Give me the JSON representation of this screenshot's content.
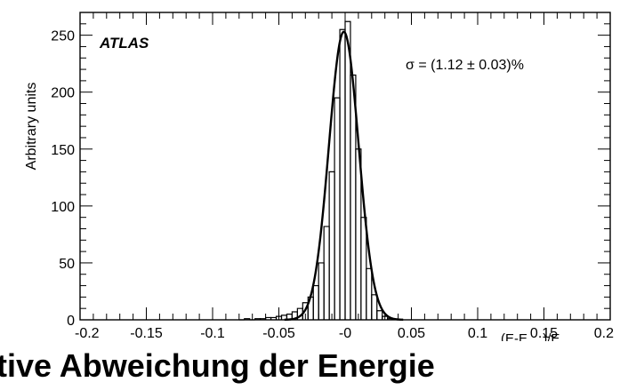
{
  "chart_data": {
    "type": "bar",
    "subtype": "histogram-with-gaussian-fit",
    "title": "",
    "brand_label": "ATLAS",
    "annotation": "σ = (1.12 ± 0.03)%",
    "ylabel": "Arbitrary units",
    "xlabel_parts": {
      "pre": "(E-E",
      "sub1": "true",
      "mid": ")/E",
      "sub2": "true"
    },
    "xlim": [
      -0.2,
      0.2
    ],
    "ylim": [
      0,
      270
    ],
    "xticks": [
      "-0.2",
      "-0.15",
      "-0.1",
      "-0.05",
      "-0",
      "0.05",
      "0.1",
      "0.15",
      "0.2"
    ],
    "yticks": [
      "0",
      "50",
      "100",
      "150",
      "200",
      "250"
    ],
    "grid": false,
    "legend": "none",
    "bin_width": 0.004,
    "bin_edges_start": -0.08,
    "bins": [
      {
        "x": -0.078,
        "y": 0
      },
      {
        "x": -0.074,
        "y": 1
      },
      {
        "x": -0.07,
        "y": 0
      },
      {
        "x": -0.066,
        "y": 1
      },
      {
        "x": -0.062,
        "y": 1
      },
      {
        "x": -0.058,
        "y": 2
      },
      {
        "x": -0.054,
        "y": 2
      },
      {
        "x": -0.05,
        "y": 3
      },
      {
        "x": -0.046,
        "y": 4
      },
      {
        "x": -0.042,
        "y": 5
      },
      {
        "x": -0.038,
        "y": 7
      },
      {
        "x": -0.034,
        "y": 10
      },
      {
        "x": -0.03,
        "y": 15
      },
      {
        "x": -0.026,
        "y": 20
      },
      {
        "x": -0.022,
        "y": 30
      },
      {
        "x": -0.018,
        "y": 50
      },
      {
        "x": -0.014,
        "y": 82
      },
      {
        "x": -0.01,
        "y": 130
      },
      {
        "x": -0.006,
        "y": 195
      },
      {
        "x": -0.002,
        "y": 255
      },
      {
        "x": 0.002,
        "y": 262
      },
      {
        "x": 0.006,
        "y": 215
      },
      {
        "x": 0.01,
        "y": 150
      },
      {
        "x": 0.014,
        "y": 90
      },
      {
        "x": 0.018,
        "y": 45
      },
      {
        "x": 0.022,
        "y": 22
      },
      {
        "x": 0.026,
        "y": 8
      },
      {
        "x": 0.03,
        "y": 3
      },
      {
        "x": 0.034,
        "y": 1
      }
    ],
    "fit": {
      "amplitude": 253,
      "mean": -0.001,
      "sigma": 0.0112
    }
  },
  "caption": {
    "text": "lative Abweichung der Energie"
  },
  "colors": {
    "ink": "#000000",
    "background": "#ffffff"
  }
}
